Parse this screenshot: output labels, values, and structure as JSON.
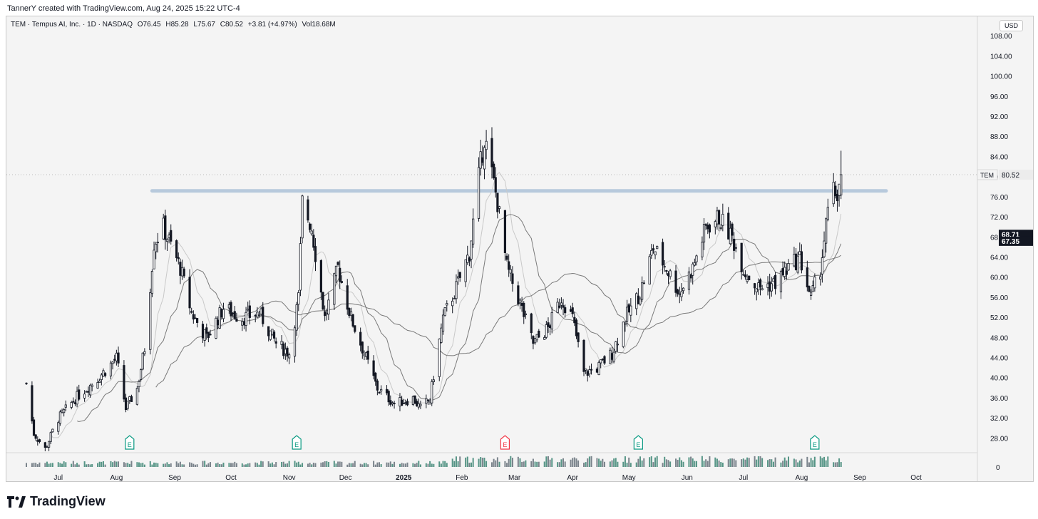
{
  "header": {
    "credit": "TannerY created with TradingView.com, Aug 24, 2025 15:22 UTC-4"
  },
  "symbol": {
    "name": "TEM · Tempus AI, Inc. · 1D · NASDAQ",
    "open": "O76.45",
    "high": "H85.28",
    "low": "L75.67",
    "close": "C80.52",
    "change": "+3.81 (+4.97%)",
    "volume": "Vol18.68M"
  },
  "currency": "USD",
  "footer": {
    "brand": "TradingView"
  },
  "colors": {
    "up": "#131722",
    "down": "#131722",
    "level": "#b7c9dc",
    "earnings_up": "#089981",
    "earnings_down": "#f23645",
    "ma_light": "#c9c9c9",
    "ma_dark": "#7a7a7a",
    "vol_up": "#2e7d6a",
    "vol_down": "#5b6770"
  },
  "chart_data": {
    "type": "candlestick",
    "ylim": [
      25.5,
      112
    ],
    "y_ticks": [
      "108.00",
      "104.00",
      "100.00",
      "96.00",
      "92.00",
      "88.00",
      "84.00",
      "80.00",
      "76.00",
      "72.00",
      "68.00",
      "64.00",
      "60.00",
      "56.00",
      "52.00",
      "48.00",
      "44.00",
      "40.00",
      "36.00",
      "32.00",
      "28.00"
    ],
    "x_ticks": [
      {
        "label": "Jul",
        "x": "2024-07-01"
      },
      {
        "label": "Aug",
        "x": "2024-08-01"
      },
      {
        "label": "Sep",
        "x": "2024-09-01"
      },
      {
        "label": "Oct",
        "x": "2024-10-01"
      },
      {
        "label": "Nov",
        "x": "2024-11-01"
      },
      {
        "label": "Dec",
        "x": "2024-12-01"
      },
      {
        "label": "2025",
        "x": "2025-01-01"
      },
      {
        "label": "Feb",
        "x": "2025-02-01"
      },
      {
        "label": "Mar",
        "x": "2025-03-01"
      },
      {
        "label": "Apr",
        "x": "2025-04-01"
      },
      {
        "label": "May",
        "x": "2025-05-01"
      },
      {
        "label": "Jun",
        "x": "2025-06-01"
      },
      {
        "label": "Jul",
        "x": "2025-07-01"
      },
      {
        "label": "Aug",
        "x": "2025-08-01"
      },
      {
        "label": "Sep",
        "x": "2025-09-01"
      },
      {
        "label": "Oct",
        "x": "2025-10-01"
      }
    ],
    "price_path": [
      [
        "2024-06-14",
        39
      ],
      [
        "2024-06-18",
        29
      ],
      [
        "2024-06-24",
        26
      ],
      [
        "2024-07-01",
        32
      ],
      [
        "2024-07-10",
        36
      ],
      [
        "2024-07-22",
        40
      ],
      [
        "2024-08-01",
        44
      ],
      [
        "2024-08-06",
        34
      ],
      [
        "2024-08-12",
        38
      ],
      [
        "2024-08-16",
        46
      ],
      [
        "2024-08-21",
        67
      ],
      [
        "2024-08-26",
        70
      ],
      [
        "2024-09-04",
        62
      ],
      [
        "2024-09-10",
        53
      ],
      [
        "2024-09-18",
        48
      ],
      [
        "2024-09-27",
        54
      ],
      [
        "2024-10-07",
        52
      ],
      [
        "2024-10-16",
        53
      ],
      [
        "2024-10-25",
        47
      ],
      [
        "2024-11-01",
        45
      ],
      [
        "2024-11-06",
        56
      ],
      [
        "2024-11-08",
        75
      ],
      [
        "2024-11-13",
        70
      ],
      [
        "2024-11-20",
        52
      ],
      [
        "2024-11-27",
        62
      ],
      [
        "2024-12-04",
        52
      ],
      [
        "2024-12-11",
        45
      ],
      [
        "2024-12-18",
        38
      ],
      [
        "2024-12-27",
        35
      ],
      [
        "2025-01-06",
        36
      ],
      [
        "2025-01-10",
        34
      ],
      [
        "2025-01-15",
        36
      ],
      [
        "2025-01-22",
        52
      ],
      [
        "2025-01-29",
        58
      ],
      [
        "2025-02-05",
        65
      ],
      [
        "2025-02-10",
        80
      ],
      [
        "2025-02-13",
        88
      ],
      [
        "2025-02-20",
        75
      ],
      [
        "2025-02-25",
        62
      ],
      [
        "2025-03-03",
        56
      ],
      [
        "2025-03-11",
        47
      ],
      [
        "2025-03-19",
        50
      ],
      [
        "2025-03-26",
        56
      ],
      [
        "2025-04-01",
        52
      ],
      [
        "2025-04-07",
        41
      ],
      [
        "2025-04-14",
        42
      ],
      [
        "2025-04-22",
        45
      ],
      [
        "2025-04-29",
        52
      ],
      [
        "2025-05-07",
        57
      ],
      [
        "2025-05-14",
        66
      ],
      [
        "2025-05-21",
        62
      ],
      [
        "2025-05-28",
        57
      ],
      [
        "2025-06-04",
        62
      ],
      [
        "2025-06-11",
        70
      ],
      [
        "2025-06-18",
        72
      ],
      [
        "2025-06-25",
        68
      ],
      [
        "2025-07-02",
        61
      ],
      [
        "2025-07-09",
        58
      ],
      [
        "2025-07-18",
        59
      ],
      [
        "2025-07-25",
        62
      ],
      [
        "2025-07-31",
        64
      ],
      [
        "2025-08-06",
        56
      ],
      [
        "2025-08-11",
        62
      ],
      [
        "2025-08-15",
        73
      ],
      [
        "2025-08-18",
        77
      ],
      [
        "2025-08-20",
        76.5
      ],
      [
        "2025-08-22",
        80.5
      ]
    ],
    "moving_averages": [
      {
        "window": 10,
        "style": "light"
      },
      {
        "window": 20,
        "style": "dark"
      },
      {
        "window": 50,
        "style": "dark"
      }
    ],
    "resistance_level": {
      "y": 77.3,
      "x_start": "2024-08-20",
      "x_end": "2025-09-15"
    },
    "last_price": {
      "label": "TEM",
      "value": "80.52",
      "y": 80.52
    },
    "ma_labels": [
      {
        "value": "68.71",
        "y": 68.71
      },
      {
        "value": "67.35",
        "y": 67.35
      }
    ],
    "earnings": [
      {
        "x": "2024-08-08",
        "label": "E",
        "type": "up"
      },
      {
        "x": "2024-11-05",
        "label": "E",
        "type": "up"
      },
      {
        "x": "2025-02-24",
        "label": "E",
        "type": "down"
      },
      {
        "x": "2025-05-06",
        "label": "E",
        "type": "up"
      },
      {
        "x": "2025-08-08",
        "label": "E",
        "type": "up"
      }
    ],
    "volume_axis_label": "0"
  }
}
